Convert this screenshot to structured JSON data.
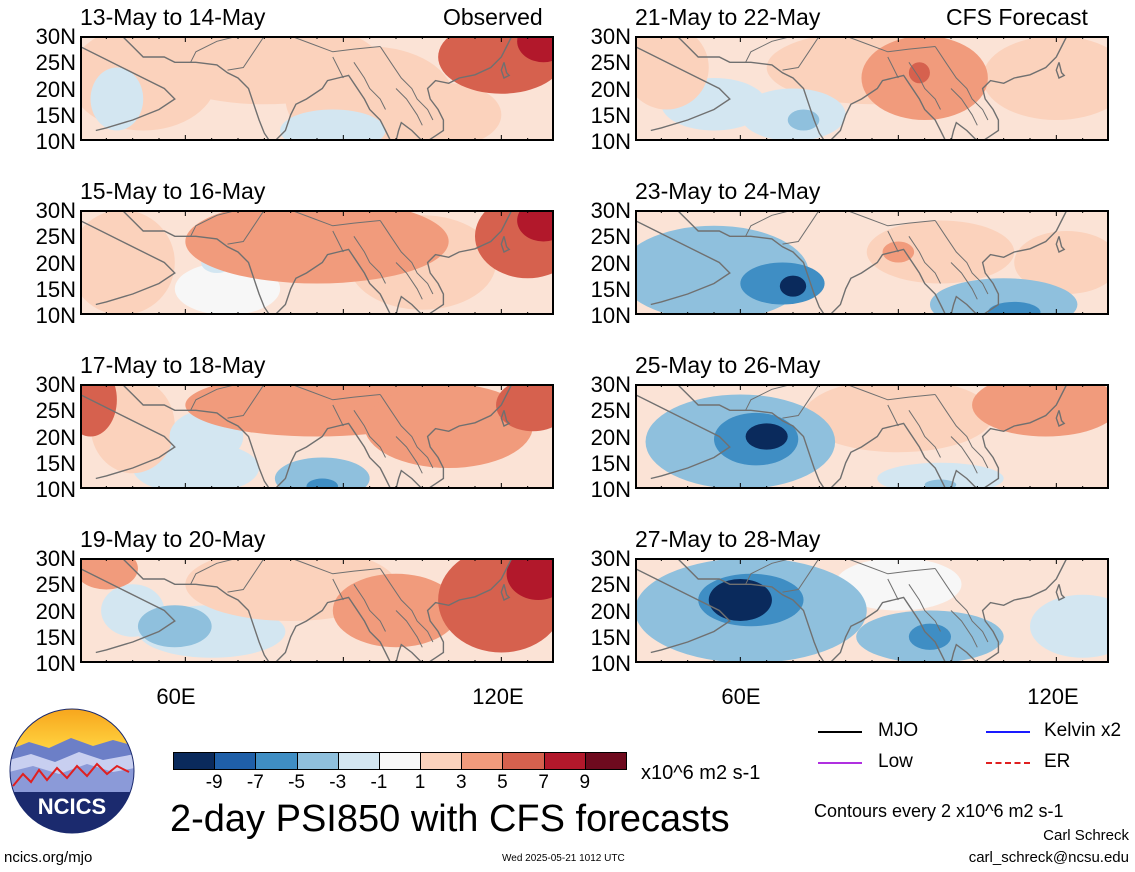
{
  "header": {
    "observed_label": "Observed",
    "forecast_label": "CFS Forecast"
  },
  "chart_data": {
    "type": "heatmap",
    "title": "2-day PSI850 with CFS forecasts",
    "variable": "PSI850",
    "units": "x10^6 m2 s-1",
    "contour_note": "Contours every 2 x10^6 m2 s-1",
    "lat_ticks": [
      "30N",
      "25N",
      "20N",
      "15N",
      "10N"
    ],
    "lon_ticks": [
      "60E",
      "120E"
    ],
    "ylim": [
      10,
      30
    ],
    "xlim": [
      40,
      130
    ],
    "colorbar": {
      "labels": [
        "-9",
        "-7",
        "-5",
        "-3",
        "-1",
        "1",
        "3",
        "5",
        "7",
        "9"
      ],
      "colors": [
        "#0a2a5c",
        "#1f5fa8",
        "#3f8ec4",
        "#8fc0dd",
        "#d3e6f1",
        "#f7f7f7",
        "#fbd2bc",
        "#f19b7c",
        "#d6614e",
        "#b2182b",
        "#6e0a1e"
      ]
    },
    "panels": [
      {
        "title": "13-May to 14-May",
        "kind": "Observed",
        "col": 0,
        "row": 0,
        "blobs": [
          {
            "lon": 52,
            "lat": 22,
            "value": 1.5,
            "rx": 14,
            "ry": 10
          },
          {
            "lon": 75,
            "lat": 25,
            "value": 2.5,
            "rx": 22,
            "ry": 8
          },
          {
            "lon": 95,
            "lat": 18,
            "value": 2.5,
            "rx": 16,
            "ry": 10
          },
          {
            "lon": 120,
            "lat": 26,
            "value": 5.5,
            "rx": 12,
            "ry": 7
          },
          {
            "lon": 128,
            "lat": 29,
            "value": 8,
            "rx": 5,
            "ry": 4
          },
          {
            "lon": 88,
            "lat": 12,
            "value": -2.5,
            "rx": 10,
            "ry": 4
          },
          {
            "lon": 47,
            "lat": 18,
            "value": -1.5,
            "rx": 5,
            "ry": 6
          },
          {
            "lon": 110,
            "lat": 15,
            "value": 3,
            "rx": 10,
            "ry": 6
          }
        ]
      },
      {
        "title": "15-May to 16-May",
        "kind": "Observed",
        "col": 0,
        "row": 1,
        "blobs": [
          {
            "lon": 48,
            "lat": 20,
            "value": 2.5,
            "rx": 10,
            "ry": 10
          },
          {
            "lon": 85,
            "lat": 24,
            "value": 4,
            "rx": 25,
            "ry": 8
          },
          {
            "lon": 105,
            "lat": 20,
            "value": 3,
            "rx": 14,
            "ry": 9
          },
          {
            "lon": 125,
            "lat": 25,
            "value": 6,
            "rx": 10,
            "ry": 8
          },
          {
            "lon": 128,
            "lat": 28,
            "value": 8,
            "rx": 5,
            "ry": 4
          },
          {
            "lon": 66,
            "lat": 20,
            "value": -1.2,
            "rx": 3,
            "ry": 2
          },
          {
            "lon": 68,
            "lat": 15,
            "value": 0,
            "rx": 10,
            "ry": 5
          }
        ]
      },
      {
        "title": "17-May to 18-May",
        "kind": "Observed",
        "col": 0,
        "row": 2,
        "blobs": [
          {
            "lon": 42,
            "lat": 27,
            "value": 6,
            "rx": 5,
            "ry": 7
          },
          {
            "lon": 50,
            "lat": 22,
            "value": 2.5,
            "rx": 8,
            "ry": 9
          },
          {
            "lon": 85,
            "lat": 26,
            "value": 4,
            "rx": 25,
            "ry": 6
          },
          {
            "lon": 110,
            "lat": 22,
            "value": 4,
            "rx": 16,
            "ry": 8
          },
          {
            "lon": 126,
            "lat": 26,
            "value": 6,
            "rx": 7,
            "ry": 5
          },
          {
            "lon": 64,
            "lat": 20,
            "value": -2.5,
            "rx": 7,
            "ry": 5
          },
          {
            "lon": 62,
            "lat": 14,
            "value": -1.2,
            "rx": 12,
            "ry": 5
          },
          {
            "lon": 86,
            "lat": 12,
            "value": -3.5,
            "rx": 9,
            "ry": 4
          },
          {
            "lon": 86,
            "lat": 10.5,
            "value": -5,
            "rx": 3,
            "ry": 1.5
          }
        ]
      },
      {
        "title": "19-May to 20-May",
        "kind": "Observed",
        "col": 0,
        "row": 3,
        "blobs": [
          {
            "lon": 45,
            "lat": 28,
            "value": 4,
            "rx": 6,
            "ry": 4
          },
          {
            "lon": 80,
            "lat": 25,
            "value": 3,
            "rx": 20,
            "ry": 7
          },
          {
            "lon": 100,
            "lat": 20,
            "value": 3.5,
            "rx": 12,
            "ry": 7
          },
          {
            "lon": 120,
            "lat": 22,
            "value": 6,
            "rx": 12,
            "ry": 10
          },
          {
            "lon": 127,
            "lat": 27,
            "value": 8.5,
            "rx": 6,
            "ry": 5
          },
          {
            "lon": 58,
            "lat": 17,
            "value": -4,
            "rx": 7,
            "ry": 4
          },
          {
            "lon": 65,
            "lat": 16,
            "value": -2,
            "rx": 14,
            "ry": 5
          },
          {
            "lon": 50,
            "lat": 20,
            "value": -1.2,
            "rx": 6,
            "ry": 5
          }
        ]
      },
      {
        "title": "21-May to 22-May",
        "kind": "CFS Forecast",
        "col": 1,
        "row": 0,
        "blobs": [
          {
            "lon": 46,
            "lat": 24,
            "value": 2.5,
            "rx": 8,
            "ry": 8
          },
          {
            "lon": 85,
            "lat": 24,
            "value": 2,
            "rx": 20,
            "ry": 7
          },
          {
            "lon": 95,
            "lat": 22,
            "value": 4,
            "rx": 12,
            "ry": 8
          },
          {
            "lon": 94,
            "lat": 23,
            "value": 6,
            "rx": 2,
            "ry": 2
          },
          {
            "lon": 120,
            "lat": 22,
            "value": 3,
            "rx": 14,
            "ry": 8
          },
          {
            "lon": 70,
            "lat": 15,
            "value": -2.5,
            "rx": 10,
            "ry": 5
          },
          {
            "lon": 72,
            "lat": 14,
            "value": -4.5,
            "rx": 3,
            "ry": 2
          },
          {
            "lon": 55,
            "lat": 17,
            "value": -1.2,
            "rx": 10,
            "ry": 5
          }
        ]
      },
      {
        "title": "23-May to 24-May",
        "kind": "CFS Forecast",
        "col": 1,
        "row": 1,
        "blobs": [
          {
            "lon": 55,
            "lat": 18,
            "value": -3,
            "rx": 18,
            "ry": 9
          },
          {
            "lon": 68,
            "lat": 16,
            "value": -5,
            "rx": 8,
            "ry": 4
          },
          {
            "lon": 70,
            "lat": 15.5,
            "value": -9,
            "rx": 2.5,
            "ry": 2
          },
          {
            "lon": 110,
            "lat": 12,
            "value": -3,
            "rx": 14,
            "ry": 5
          },
          {
            "lon": 112,
            "lat": 10.5,
            "value": -5,
            "rx": 5,
            "ry": 2
          },
          {
            "lon": 98,
            "lat": 22,
            "value": 2.5,
            "rx": 14,
            "ry": 6
          },
          {
            "lon": 90,
            "lat": 22,
            "value": 4,
            "rx": 3,
            "ry": 2
          },
          {
            "lon": 122,
            "lat": 20,
            "value": 1.5,
            "rx": 10,
            "ry": 6
          }
        ]
      },
      {
        "title": "25-May to 26-May",
        "kind": "CFS Forecast",
        "col": 1,
        "row": 2,
        "blobs": [
          {
            "lon": 60,
            "lat": 19,
            "value": -3,
            "rx": 18,
            "ry": 9
          },
          {
            "lon": 63,
            "lat": 19.5,
            "value": -6,
            "rx": 8,
            "ry": 5
          },
          {
            "lon": 65,
            "lat": 20,
            "value": -9,
            "rx": 4,
            "ry": 2.5
          },
          {
            "lon": 98,
            "lat": 12,
            "value": -2,
            "rx": 12,
            "ry": 3
          },
          {
            "lon": 98,
            "lat": 10.8,
            "value": -4,
            "rx": 3,
            "ry": 1
          },
          {
            "lon": 90,
            "lat": 24,
            "value": 2,
            "rx": 18,
            "ry": 7
          },
          {
            "lon": 118,
            "lat": 26,
            "value": 3.5,
            "rx": 14,
            "ry": 6
          }
        ]
      },
      {
        "title": "27-May to 28-May",
        "kind": "CFS Forecast",
        "col": 1,
        "row": 3,
        "blobs": [
          {
            "lon": 62,
            "lat": 20,
            "value": -3,
            "rx": 22,
            "ry": 10
          },
          {
            "lon": 62,
            "lat": 22,
            "value": -6,
            "rx": 10,
            "ry": 5
          },
          {
            "lon": 60,
            "lat": 22,
            "value": -9,
            "rx": 6,
            "ry": 4
          },
          {
            "lon": 96,
            "lat": 15,
            "value": -3,
            "rx": 14,
            "ry": 5
          },
          {
            "lon": 96,
            "lat": 15,
            "value": -6,
            "rx": 4,
            "ry": 2.5
          },
          {
            "lon": 125,
            "lat": 17,
            "value": -1.5,
            "rx": 10,
            "ry": 6
          },
          {
            "lon": 90,
            "lat": 25,
            "value": 0.5,
            "rx": 12,
            "ry": 5
          }
        ]
      }
    ]
  },
  "legend": {
    "items": [
      {
        "label": "MJO",
        "color": "#000000",
        "style": "solid"
      },
      {
        "label": "Kelvin x2",
        "color": "#1a1aff",
        "style": "solid"
      },
      {
        "label": "Low",
        "color": "#b030e0",
        "style": "solid"
      },
      {
        "label": "ER",
        "color": "#e02020",
        "style": "dashed"
      }
    ]
  },
  "logo": {
    "text": "NCICS"
  },
  "footer": {
    "url": "ncics.org/mjo",
    "timestamp": "Wed 2025-05-21 1012 UTC",
    "author": "Carl Schreck",
    "email": "carl_schreck@ncsu.edu"
  }
}
